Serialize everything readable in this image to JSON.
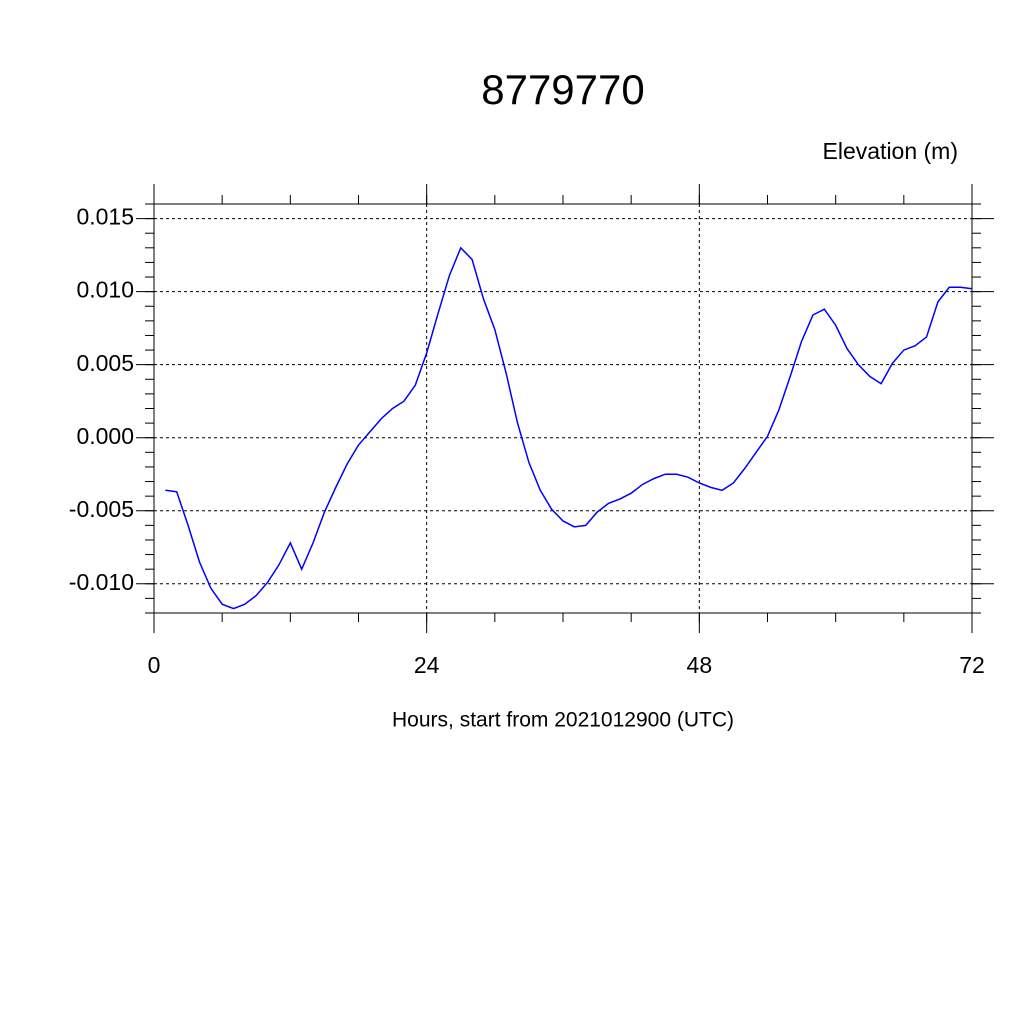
{
  "chart_data": {
    "type": "line",
    "title": "8779770",
    "subtitle": "Elevation (m)",
    "x_label": "Hours, start from 2021012900 (UTC)",
    "x": [
      1,
      2,
      3,
      4,
      5,
      6,
      7,
      8,
      9,
      10,
      11,
      12,
      13,
      14,
      15,
      16,
      17,
      18,
      19,
      20,
      21,
      22,
      23,
      24,
      25,
      26,
      27,
      28,
      29,
      30,
      31,
      32,
      33,
      34,
      35,
      36,
      37,
      38,
      39,
      40,
      41,
      42,
      43,
      44,
      45,
      46,
      47,
      48,
      49,
      50,
      51,
      52,
      53,
      54,
      55,
      56,
      57,
      58,
      59,
      60,
      61,
      62,
      63,
      64,
      65,
      66,
      67,
      68,
      69,
      70,
      71,
      72
    ],
    "series": [
      {
        "color": "#0000ff",
        "values": [
          -0.0036,
          -0.0037,
          -0.006,
          -0.0085,
          -0.0103,
          -0.0114,
          -0.0117,
          -0.0114,
          -0.0108,
          -0.0099,
          -0.0087,
          -0.0072,
          -0.009,
          -0.0072,
          -0.0051,
          -0.0034,
          -0.0018,
          -0.0005,
          0.0004,
          0.0013,
          0.002,
          0.0025,
          0.0036,
          0.0058,
          0.0085,
          0.0111,
          0.013,
          0.0122,
          0.0095,
          0.0074,
          0.0044,
          0.001,
          -0.0017,
          -0.0036,
          -0.0049,
          -0.0057,
          -0.0061,
          -0.006,
          -0.0051,
          -0.0045,
          -0.0042,
          -0.0038,
          -0.0032,
          -0.0028,
          -0.0025,
          -0.0025,
          -0.0027,
          -0.0031,
          -0.0034,
          -0.0036,
          -0.0031,
          -0.0021,
          -0.001,
          0.0001,
          0.0019,
          0.0042,
          0.0066,
          0.0084,
          0.0088,
          0.0077,
          0.0061,
          0.005,
          0.0042,
          0.0037,
          0.0051,
          0.006,
          0.0063,
          0.0069,
          0.0093,
          0.0103,
          0.0103,
          0.0102
        ]
      }
    ],
    "xlim": [
      0,
      72
    ],
    "xticks": [
      0,
      24,
      48,
      72
    ],
    "ylim": [
      -0.012,
      0.016
    ],
    "yticks": [
      {
        "value": -0.01,
        "label": "-0.010"
      },
      -0.005,
      {
        "value": 0,
        "label": "0.000"
      },
      0.005,
      {
        "value": 0.01,
        "label": "0.010"
      },
      0.015
    ],
    "grid": true
  }
}
